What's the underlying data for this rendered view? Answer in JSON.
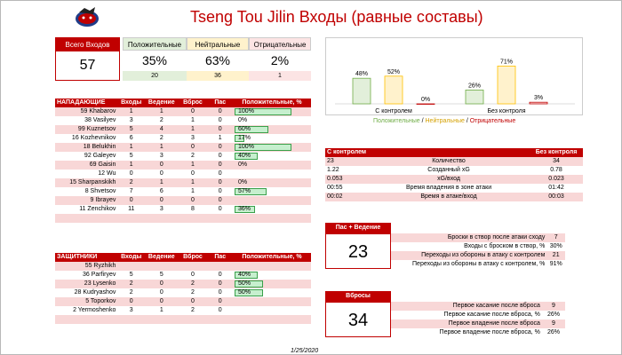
{
  "title": "Tseng Tou Jilin Входы (равные составы)",
  "date": "1/25/2020",
  "colors": {
    "red": "#c00000",
    "green": "#70ad47",
    "yellow": "#ffc000"
  },
  "kpi": {
    "total_label": "Всего Входов",
    "total_value": "57",
    "positive": {
      "label": "Положительные",
      "pct": "35%",
      "count": "20"
    },
    "neutral": {
      "label": "Нейтральные",
      "pct": "63%",
      "count": "36"
    },
    "negative": {
      "label": "Отрицательные",
      "pct": "2%",
      "count": "1"
    }
  },
  "chart_data": {
    "type": "bar",
    "categories": [
      "С контролем",
      "Без контроля"
    ],
    "series": [
      {
        "name": "Положительные",
        "values": [
          48,
          26
        ],
        "labels": [
          "48%",
          "26%"
        ]
      },
      {
        "name": "Нейтральные",
        "values": [
          52,
          71
        ],
        "labels": [
          "52%",
          "71%"
        ]
      },
      {
        "name": "Отрицательные",
        "values": [
          0,
          3
        ],
        "labels": [
          "0%",
          "3%"
        ]
      }
    ],
    "legend": {
      "pos": "Положительные",
      "sep1": " / ",
      "neu": "Нейтральные",
      "sep2": " / ",
      "neg": "Отрицательные"
    }
  },
  "forwards": {
    "headers": [
      "НАПАДАЮЩИЕ",
      "Входы",
      "Ведение",
      "Вброс",
      "Пас",
      "Положительные, %"
    ],
    "rows": [
      {
        "name": "59 Khabarov",
        "entries": "1",
        "carry": "1",
        "dump": "0",
        "pass": "0",
        "pos": "100%",
        "pct": 100
      },
      {
        "name": "38 Vasilyev",
        "entries": "3",
        "carry": "2",
        "dump": "1",
        "pass": "0",
        "pos": "0%",
        "pct": 0
      },
      {
        "name": "99 Kuznetsov",
        "entries": "5",
        "carry": "4",
        "dump": "1",
        "pass": "0",
        "pos": "60%",
        "pct": 60
      },
      {
        "name": "16 Kozhevnikov",
        "entries": "6",
        "carry": "2",
        "dump": "3",
        "pass": "1",
        "pos": "17%",
        "pct": 17
      },
      {
        "name": "18 Belukhin",
        "entries": "1",
        "carry": "1",
        "dump": "0",
        "pass": "0",
        "pos": "100%",
        "pct": 100
      },
      {
        "name": "92 Galeyev",
        "entries": "5",
        "carry": "3",
        "dump": "2",
        "pass": "0",
        "pos": "40%",
        "pct": 40
      },
      {
        "name": "69 Gaisin",
        "entries": "1",
        "carry": "0",
        "dump": "1",
        "pass": "0",
        "pos": "0%",
        "pct": 0
      },
      {
        "name": "12 Wu",
        "entries": "0",
        "carry": "0",
        "dump": "0",
        "pass": "0",
        "pos": "",
        "pct": 0
      },
      {
        "name": "15 Sharpanskikh",
        "entries": "2",
        "carry": "1",
        "dump": "1",
        "pass": "0",
        "pos": "0%",
        "pct": 0
      },
      {
        "name": "8 Shvetsov",
        "entries": "7",
        "carry": "6",
        "dump": "1",
        "pass": "0",
        "pos": "57%",
        "pct": 57
      },
      {
        "name": "9 Ibrayev",
        "entries": "0",
        "carry": "0",
        "dump": "0",
        "pass": "0",
        "pos": "",
        "pct": 0
      },
      {
        "name": "11 Zenchikov",
        "entries": "11",
        "carry": "3",
        "dump": "8",
        "pass": "0",
        "pos": "36%",
        "pct": 36
      }
    ]
  },
  "defense": {
    "headers": [
      "ЗАЩИТНИКИ",
      "Входы",
      "Ведение",
      "Вброс",
      "Пас",
      "Положительные, %"
    ],
    "rows": [
      {
        "name": "55 Ryzhikh",
        "entries": "",
        "carry": "",
        "dump": "",
        "pass": "",
        "pos": "",
        "pct": 0
      },
      {
        "name": "36 Parfiryev",
        "entries": "5",
        "carry": "5",
        "dump": "0",
        "pass": "0",
        "pos": "40%",
        "pct": 40
      },
      {
        "name": "23 Lysenko",
        "entries": "2",
        "carry": "0",
        "dump": "2",
        "pass": "0",
        "pos": "50%",
        "pct": 50
      },
      {
        "name": "28 Kudryashov",
        "entries": "2",
        "carry": "0",
        "dump": "2",
        "pass": "0",
        "pos": "50%",
        "pct": 50
      },
      {
        "name": "5 Toporkov",
        "entries": "0",
        "carry": "0",
        "dump": "0",
        "pass": "0",
        "pos": "",
        "pct": 0
      },
      {
        "name": "2 Yermoshenko",
        "entries": "3",
        "carry": "1",
        "dump": "2",
        "pass": "0",
        "pos": "",
        "pct": 0
      }
    ]
  },
  "compare": {
    "headers": [
      "С контролем",
      "",
      "Без контроля"
    ],
    "rows": [
      {
        "left": "23",
        "label": "Количество",
        "right": "34"
      },
      {
        "left": "1.22",
        "label": "Созданный xG",
        "right": "0.78"
      },
      {
        "left": "0.053",
        "label": "xG/вход",
        "right": "0.023"
      },
      {
        "left": "00:55",
        "label": "Время владения в зоне атаки",
        "right": "01:42"
      },
      {
        "left": "00:02",
        "label": "Время в атаке/вход",
        "right": "00:03"
      }
    ]
  },
  "pass_carry": {
    "label": "Пас + Ведение",
    "value": "23",
    "rows": [
      {
        "label": "Броски в створ после атаки сходу",
        "value": "7"
      },
      {
        "label": "Входы с броском в створ, %",
        "value": "30%"
      },
      {
        "label": "Переходы из обороны в атаку с контролем",
        "value": "21"
      },
      {
        "label": "Переходы из обороны в атаку с контролем, %",
        "value": "91%"
      }
    ]
  },
  "dumps": {
    "label": "Вбросы",
    "value": "34",
    "rows": [
      {
        "label": "Первое касание после вброса",
        "value": "9"
      },
      {
        "label": "Первое касание после вброса, %",
        "value": "26%"
      },
      {
        "label": "Первое владение после вброса",
        "value": "9"
      },
      {
        "label": "Первое владение после вброса, %",
        "value": "26%"
      }
    ]
  }
}
